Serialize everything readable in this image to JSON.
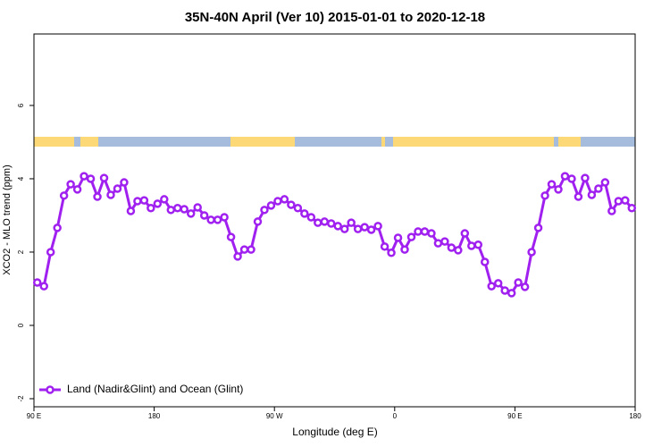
{
  "chart_data": {
    "type": "line",
    "title": "35N-40N April (Ver 10)   2015-01-01 to 2020-12-18",
    "xlabel": "Longitude (deg E)",
    "ylabel": "XCO2 - MLO trend (ppm)",
    "x": [
      92.5,
      97.5,
      102.5,
      107.5,
      112.5,
      117.5,
      122.5,
      127.5,
      132.5,
      137.5,
      142.5,
      147.5,
      152.5,
      157.5,
      162.5,
      167.5,
      172.5,
      177.5,
      182.5,
      187.5,
      192.5,
      197.5,
      202.5,
      207.5,
      212.5,
      217.5,
      222.5,
      227.5,
      232.5,
      237.5,
      242.5,
      247.5,
      252.5,
      257.5,
      262.5,
      267.5,
      272.5,
      277.5,
      282.5,
      287.5,
      292.5,
      297.5,
      302.5,
      307.5,
      312.5,
      317.5,
      322.5,
      327.5,
      332.5,
      337.5,
      342.5,
      347.5,
      352.5,
      357.5,
      362.5,
      367.5,
      372.5,
      377.5,
      382.5,
      387.5,
      392.5,
      397.5,
      402.5,
      407.5,
      412.5,
      417.5,
      422.5,
      427.5,
      432.5,
      437.5,
      442.5,
      447.5,
      452.5,
      457.5,
      462.5,
      467.5,
      472.5,
      477.5,
      482.5,
      487.5,
      492.5,
      497.5,
      502.5,
      507.5,
      512.5,
      517.5,
      522.5,
      527.5,
      532.5,
      537.5
    ],
    "series": [
      {
        "name": "Land (Nadir&Glint) and Ocean (Glint)",
        "color": "#a020f0",
        "values": [
          1.17,
          1.07,
          2.0,
          2.66,
          3.54,
          3.85,
          3.71,
          4.07,
          4.0,
          3.51,
          4.02,
          3.56,
          3.73,
          3.9,
          3.12,
          3.39,
          3.41,
          3.2,
          3.32,
          3.44,
          3.15,
          3.2,
          3.17,
          3.05,
          3.22,
          3.0,
          2.88,
          2.88,
          2.95,
          2.41,
          1.88,
          2.07,
          2.07,
          2.83,
          3.15,
          3.27,
          3.39,
          3.44,
          3.29,
          3.2,
          3.05,
          2.95,
          2.8,
          2.83,
          2.78,
          2.71,
          2.63,
          2.8,
          2.63,
          2.68,
          2.61,
          2.71,
          2.15,
          1.98,
          2.39,
          2.07,
          2.41,
          2.56,
          2.56,
          2.51,
          2.24,
          2.29,
          2.12,
          2.05,
          2.51,
          2.17,
          2.2,
          1.73,
          1.07,
          1.15,
          0.95,
          0.88,
          1.17,
          1.05,
          2.0,
          2.66,
          3.54,
          3.85,
          3.71,
          4.07,
          4.0,
          3.51,
          4.02,
          3.56,
          3.73,
          3.9,
          3.12,
          3.39,
          3.41,
          3.2
        ]
      }
    ],
    "xlim": [
      90,
      540
    ],
    "xticks": [
      {
        "value": 90,
        "label": "90 E"
      },
      180,
      {
        "value": 270,
        "label": "90 W"
      },
      {
        "value": 360,
        "label": "0"
      },
      {
        "value": 450,
        "label": "90 E"
      },
      {
        "value": 540,
        "label": "180"
      }
    ],
    "ylim": [
      -2.22,
      7.95
    ],
    "yticks": [
      -2,
      0,
      2,
      4,
      6
    ],
    "legend": "bottom-left"
  }
}
